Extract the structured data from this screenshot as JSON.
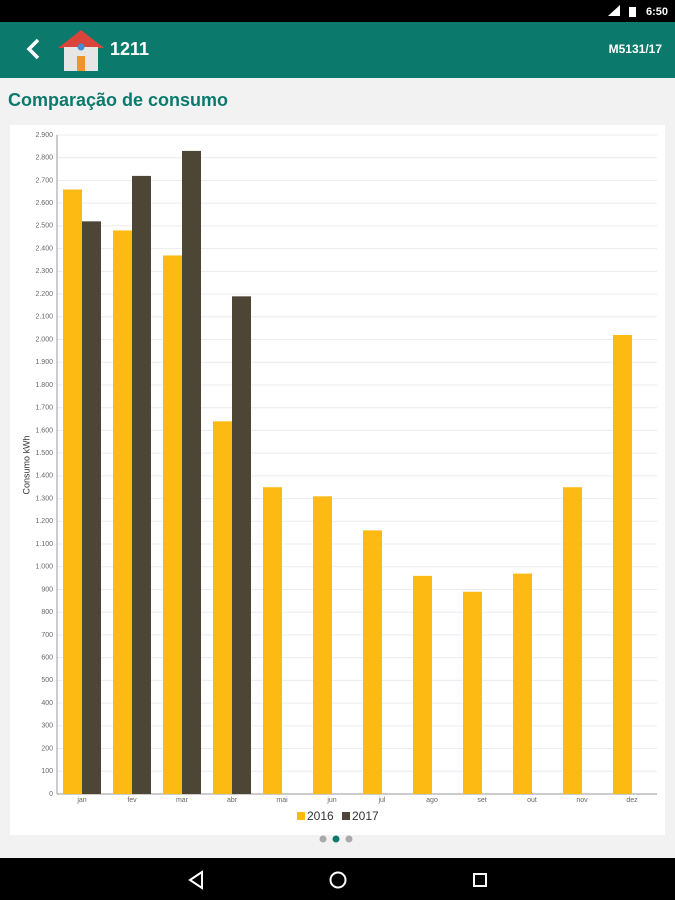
{
  "status_bar": {
    "time": "6:50"
  },
  "app_bar": {
    "title": "1211",
    "code": "M5131/17"
  },
  "heading": "Comparação de consumo",
  "chart_data": {
    "type": "bar",
    "ylabel": "Consumo kWh",
    "categories": [
      "jan",
      "fev",
      "mar",
      "abr",
      "mai",
      "jun",
      "jul",
      "ago",
      "set",
      "out",
      "nov",
      "dez"
    ],
    "series": [
      {
        "name": "2016",
        "color": "#fdba12",
        "values": [
          2660,
          2480,
          2370,
          1640,
          1350,
          1310,
          1160,
          960,
          890,
          970,
          1350,
          2020
        ]
      },
      {
        "name": "2017",
        "color": "#4d4535",
        "values": [
          2520,
          2720,
          2830,
          2190,
          null,
          null,
          null,
          null,
          null,
          null,
          null,
          null
        ]
      }
    ],
    "ylim": [
      0,
      2900
    ],
    "yticks": [
      0,
      100,
      200,
      300,
      400,
      500,
      600,
      700,
      800,
      900,
      {
        "value": 1000,
        "label": "1.000"
      },
      {
        "value": 1100,
        "label": "1.100"
      },
      {
        "value": 1200,
        "label": "1.200"
      },
      {
        "value": 1300,
        "label": "1.300"
      },
      {
        "value": 1400,
        "label": "1.400"
      },
      {
        "value": 1500,
        "label": "1.500"
      },
      {
        "value": 1600,
        "label": "1.600"
      },
      {
        "value": 1700,
        "label": "1.700"
      },
      {
        "value": 1800,
        "label": "1.800"
      },
      {
        "value": 1900,
        "label": "1.900"
      },
      {
        "value": 2000,
        "label": "2.000"
      },
      {
        "value": 2100,
        "label": "2.100"
      },
      {
        "value": 2200,
        "label": "2.200"
      },
      {
        "value": 2300,
        "label": "2.300"
      },
      {
        "value": 2400,
        "label": "2.400"
      },
      {
        "value": 2500,
        "label": "2.500"
      },
      {
        "value": 2600,
        "label": "2.600"
      },
      {
        "value": 2700,
        "label": "2.700"
      },
      {
        "value": 2800,
        "label": "2.800"
      },
      {
        "value": 2900,
        "label": "2.900"
      }
    ],
    "grid": true,
    "legend": "bottom"
  }
}
